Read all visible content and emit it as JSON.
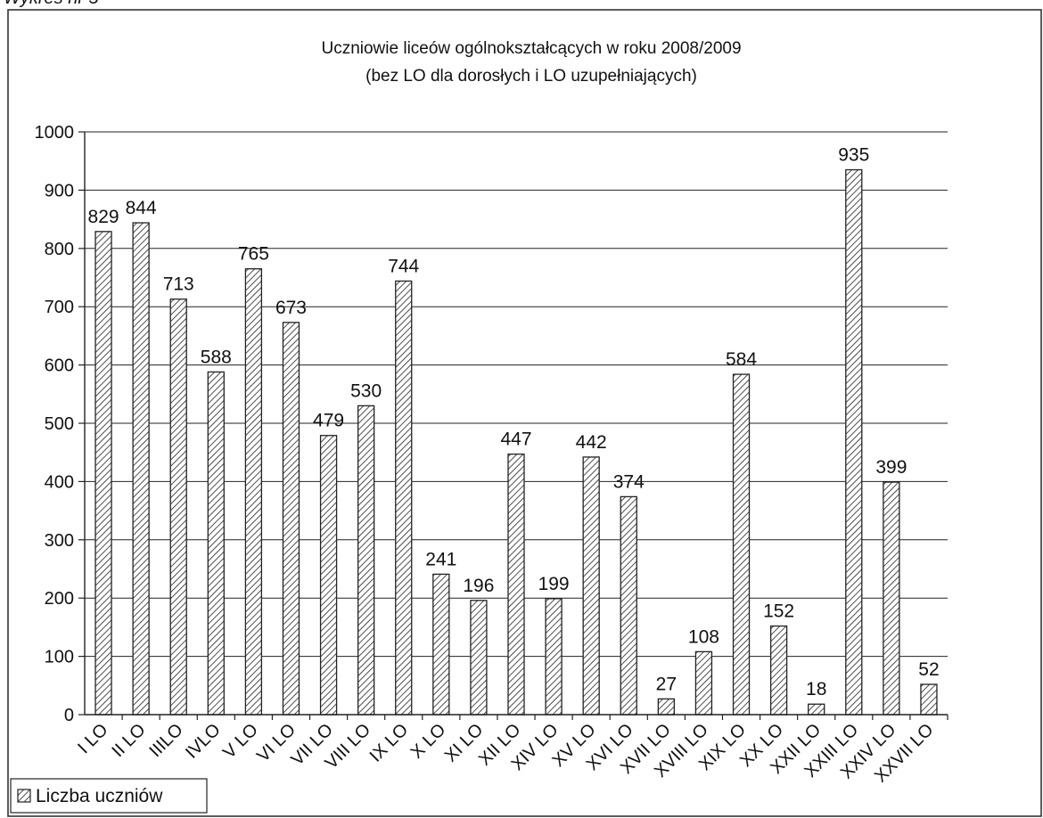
{
  "header_fragment": "Wykres nr 5",
  "chart_data": {
    "type": "bar",
    "title": "Uczniowie liceów ogólnokształcących w roku 2008/2009",
    "subtitle": "(bez LO dla dorosłych i LO uzupełniających)",
    "xlabel": "",
    "ylabel": "",
    "ylim": [
      0,
      1000
    ],
    "yticks": [
      "0",
      "100",
      "200",
      "300",
      "400",
      "500",
      "600",
      "700",
      "800",
      "900",
      "1000"
    ],
    "grid": true,
    "legend_position": "bottom-left",
    "categories": [
      "I LO",
      "II LO",
      "IIILO",
      "IVLO",
      "V LO",
      "VI LO",
      "VII LO",
      "VIII LO",
      "IX LO",
      "X LO",
      "XI LO",
      "XII LO",
      "XIV LO",
      "XV LO",
      "XVI LO",
      "XVII LO",
      "XVIII LO",
      "XIX LO",
      "XX LO",
      "XXII LO",
      "XXIII LO",
      "XXIV LO",
      "XXVII LO"
    ],
    "series": [
      {
        "name": "Liczba uczniów",
        "pattern": "diagonal-hatch",
        "values": [
          829,
          844,
          713,
          588,
          765,
          673,
          479,
          530,
          744,
          241,
          196,
          447,
          199,
          442,
          374,
          27,
          108,
          584,
          152,
          18,
          935,
          399,
          52
        ]
      }
    ]
  }
}
